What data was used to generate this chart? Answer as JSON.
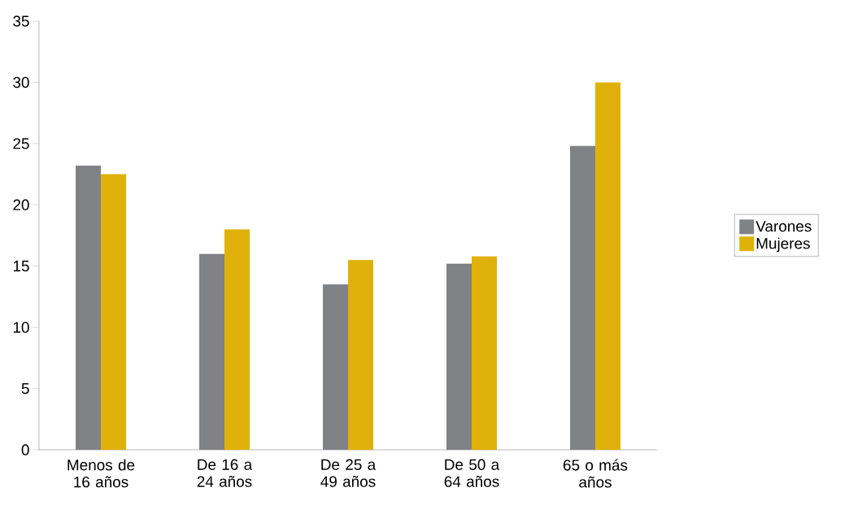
{
  "chart_data": {
    "type": "bar",
    "categories": [
      "Menos de 16 años",
      "De 16 a 24 años",
      "De 25 a 49 años",
      "De 50 a 64 años",
      "65 o más años"
    ],
    "series": [
      {
        "name": "Varones",
        "color": "#808285",
        "values": [
          23.2,
          16,
          13.5,
          15.2,
          24.8
        ]
      },
      {
        "name": "Mujeres",
        "color": "#dfb10a",
        "values": [
          22.5,
          18,
          15.5,
          15.8,
          30
        ]
      }
    ],
    "ylim": [
      0,
      35
    ],
    "yticks": [
      0,
      5,
      10,
      15,
      20,
      25,
      30,
      35
    ],
    "grid": false,
    "legend": "right"
  }
}
